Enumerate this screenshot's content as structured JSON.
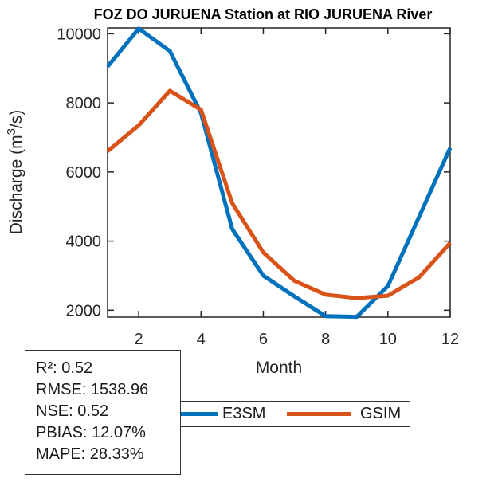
{
  "chart_data": {
    "type": "line",
    "title": "FOZ DO JURUENA  Station at  RIO JURUENA  River",
    "xlabel": "Month",
    "ylabel": "Discharge (m³/s)",
    "x": [
      1,
      2,
      3,
      4,
      5,
      6,
      7,
      8,
      9,
      10,
      11,
      12
    ],
    "series": [
      {
        "name": "E3SM",
        "color": "#0072BD",
        "values": [
          9050,
          10150,
          9500,
          7700,
          4350,
          3000,
          2400,
          1830,
          1810,
          2700,
          4700,
          6700
        ]
      },
      {
        "name": "GSIM",
        "color": "#D95319",
        "values": [
          6600,
          7350,
          8350,
          7800,
          5100,
          3670,
          2850,
          2450,
          2350,
          2420,
          2950,
          3950
        ]
      }
    ],
    "xlim": [
      1,
      12
    ],
    "ylim": [
      1800,
      10170
    ],
    "xticks": [
      2,
      4,
      6,
      8,
      10,
      12
    ],
    "yticks": [
      2000,
      4000,
      6000,
      8000,
      10000
    ],
    "grid": false,
    "legend_position": "below plot, horizontal"
  },
  "legend": {
    "items": [
      {
        "label": "E3SM",
        "color": "#0072BD"
      },
      {
        "label": "GSIM",
        "color": "#D95319"
      }
    ]
  },
  "stats": {
    "lines": [
      "R²: 0.52",
      "RMSE: 1538.96",
      "NSE: 0.52",
      "PBIAS: 12.07%",
      "MAPE: 28.33%"
    ]
  },
  "colors": {
    "e3sm": "#0072BD",
    "gsim": "#D95319",
    "axis": "#262626",
    "title": "#000000"
  }
}
